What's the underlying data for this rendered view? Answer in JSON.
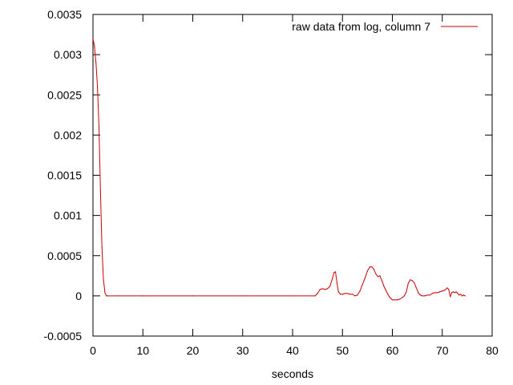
{
  "chart_data": {
    "type": "line",
    "title": "",
    "xlabel": "seconds",
    "ylabel": "",
    "xlim": [
      0,
      80
    ],
    "ylim": [
      -0.0005,
      0.0035
    ],
    "grid": false,
    "legend_position": "top-right",
    "x_ticks": [
      0,
      10,
      20,
      30,
      40,
      50,
      60,
      70,
      80
    ],
    "x_tick_labels": [
      "0",
      "10",
      "20",
      "30",
      "40",
      "50",
      "60",
      "70",
      "80"
    ],
    "y_ticks": [
      -0.0005,
      0,
      0.0005,
      0.001,
      0.0015,
      0.002,
      0.0025,
      0.003,
      0.0035
    ],
    "y_tick_labels": [
      "-0.0005",
      "0",
      "0.0005",
      "0.001",
      "0.0015",
      "0.002",
      "0.0025",
      "0.003",
      "0.0035"
    ],
    "series": [
      {
        "name": "raw data from log, column 7",
        "color": "#cc0000",
        "x": [
          0,
          0.3,
          0.6,
          0.9,
          1.2,
          1.5,
          1.8,
          2.1,
          2.4,
          2.7,
          3.0,
          5,
          10,
          20,
          30,
          40,
          44.5,
          45.0,
          45.5,
          46.0,
          46.5,
          47.0,
          47.5,
          48.0,
          48.3,
          48.6,
          48.9,
          49.2,
          49.6,
          50.0,
          50.5,
          51.0,
          51.5,
          52.0,
          52.5,
          53.0,
          53.5,
          54.0,
          54.5,
          55.0,
          55.5,
          55.9,
          56.3,
          56.7,
          57.1,
          57.5,
          57.9,
          58.3,
          58.7,
          59.1,
          59.5,
          60.0,
          60.5,
          61.0,
          61.5,
          62.0,
          62.4,
          62.8,
          63.2,
          63.6,
          64.0,
          64.4,
          64.8,
          65.2,
          65.6,
          66.0,
          66.5,
          67.0,
          67.5,
          68.0,
          68.5,
          69.0,
          69.5,
          70.0,
          70.5,
          71.0,
          71.3,
          71.6,
          71.9,
          72.2,
          72.5,
          72.8,
          73.1,
          73.4,
          73.7,
          74.0,
          74.3,
          74.6
        ],
        "y": [
          0.0032,
          0.0031,
          0.0029,
          0.0026,
          0.0021,
          0.0013,
          0.0006,
          0.0002,
          4e-05,
          0.0,
          0.0,
          0.0,
          0.0,
          0.0,
          0.0,
          0.0,
          0.0,
          3e-05,
          8e-05,
          9e-05,
          8e-05,
          9e-05,
          0.00012,
          0.00022,
          0.00029,
          0.0003,
          0.00016,
          5e-05,
          2e-05,
          2e-05,
          3e-05,
          3e-05,
          2e-05,
          2e-05,
          0.0,
          1e-05,
          6e-05,
          0.00014,
          0.00022,
          0.00031,
          0.00036,
          0.00036,
          0.00033,
          0.00027,
          0.00024,
          0.00025,
          0.00019,
          0.00012,
          7e-05,
          2e-05,
          -2e-05,
          -5e-05,
          -5e-05,
          -5e-05,
          -4e-05,
          -2e-05,
          0.0,
          5e-05,
          0.00016,
          0.0002,
          0.00019,
          0.00016,
          0.0001,
          4e-05,
          1e-05,
          0.0,
          0.0,
          1e-05,
          1e-05,
          3e-05,
          4e-05,
          4e-05,
          5e-05,
          6e-05,
          7e-05,
          0.0001,
          8e-05,
          -1e-05,
          4e-05,
          5e-05,
          4e-05,
          5e-05,
          3e-05,
          1e-05,
          2e-05,
          0.0,
          1e-05,
          0.0
        ]
      }
    ]
  }
}
